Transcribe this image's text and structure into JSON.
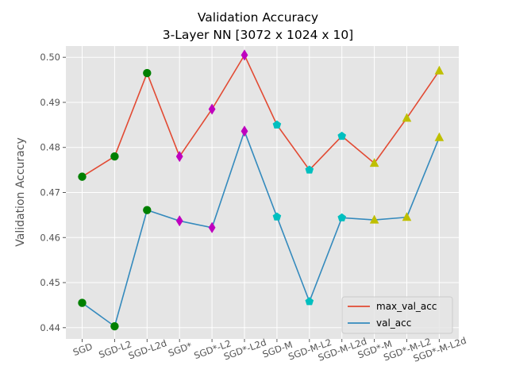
{
  "chart_data": {
    "type": "line",
    "title": "Validation Accuracy",
    "subtitle": "3-Layer NN [3072 x 1024 x 10]",
    "xlabel": "",
    "ylabel": "Validation Accuracy",
    "categories": [
      "SGD",
      "SGD-L2",
      "SGD-L2d",
      "SGD*",
      "SGD*-L2",
      "SGD*-L2d",
      "SGD-M",
      "SGD-M-L2",
      "SGD-M-L2d",
      "SGD*-M",
      "SGD*-M-L2",
      "SGD*-M-L2d"
    ],
    "ylim": [
      0.4375,
      0.5025
    ],
    "yticks": [
      "0.44",
      "0.45",
      "0.46",
      "0.47",
      "0.48",
      "0.49",
      "0.50"
    ],
    "series": [
      {
        "name": "max_val_acc",
        "color": "#E24A33",
        "values": [
          0.4735,
          0.478,
          0.4965,
          0.478,
          0.4885,
          0.5005,
          0.485,
          0.475,
          0.4825,
          0.4765,
          0.4865,
          0.497
        ]
      },
      {
        "name": "val_acc",
        "color": "#348ABD",
        "values": [
          0.4455,
          0.4403,
          0.4661,
          0.4637,
          0.4622,
          0.4836,
          0.4646,
          0.4458,
          0.4644,
          0.4639,
          0.4645,
          0.4822
        ]
      }
    ],
    "marker_groups": [
      {
        "marker": "circle",
        "color": "#008000",
        "indices": [
          0,
          1,
          2
        ]
      },
      {
        "marker": "diamond",
        "color": "#BF00BF",
        "indices": [
          3,
          4,
          5
        ]
      },
      {
        "marker": "pentagon",
        "color": "#00BFBF",
        "indices": [
          6,
          7,
          8
        ]
      },
      {
        "marker": "triangle",
        "color": "#BFBF00",
        "indices": [
          9,
          10,
          11
        ]
      }
    ],
    "grid": true,
    "legend_position": "lower-right"
  }
}
